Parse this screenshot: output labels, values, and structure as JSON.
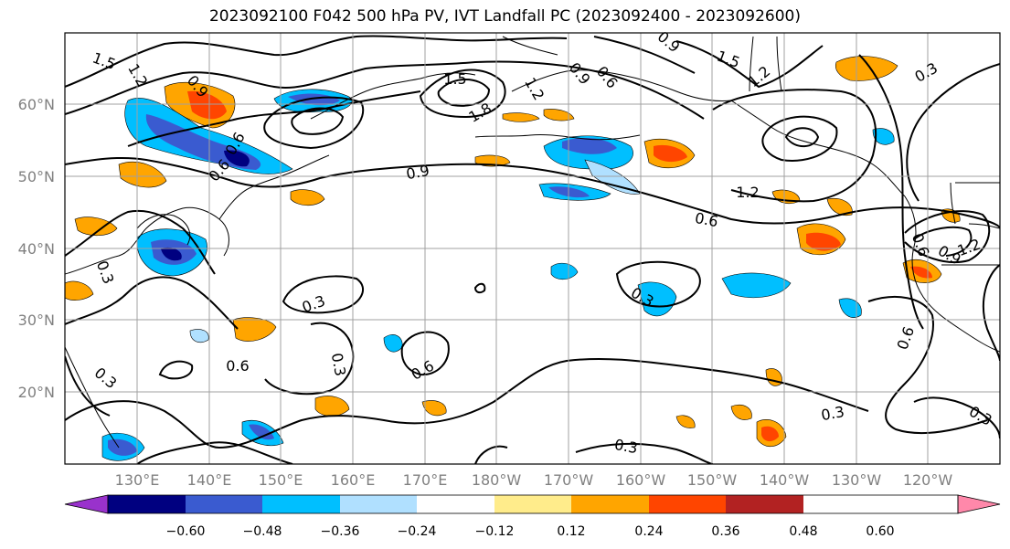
{
  "title": "2023092100 F042 500 hPa PV, IVT Landfall PC (2023092400 - 2023092600)",
  "lat_labels": [
    "60°N",
    "50°N",
    "40°N",
    "30°N",
    "20°N"
  ],
  "lon_labels": [
    "130°E",
    "140°E",
    "150°E",
    "160°E",
    "170°E",
    "180°W",
    "170°W",
    "160°W",
    "150°W",
    "140°W",
    "130°W",
    "120°W"
  ],
  "contour_labels": [
    "1.5",
    "1.2",
    "0.9",
    "0.6",
    "1.5",
    "1.8",
    "1.2",
    "0.9",
    "0.6",
    "0.9",
    "1.5",
    "1.2",
    "0.3",
    "0.9",
    "0.6",
    "1.2",
    "0.6",
    "0.3",
    "0.3",
    "0.6",
    "0.3",
    "0.6",
    "0.3",
    "0.3",
    "0.3",
    "0.6",
    "0.3",
    "0.3",
    "0.9",
    "1.2",
    "0.6"
  ],
  "colorbar": {
    "colors": [
      "#9932cc",
      "#000080",
      "#3a5bd0",
      "#00bfff",
      "#b0e0ff",
      "#ffffff",
      "#ffec8b",
      "#ffa500",
      "#ff4500",
      "#b22222",
      "#ff88aa"
    ],
    "ticks": [
      "−0.60",
      "−0.48",
      "−0.36",
      "−0.24",
      "−0.12",
      "0.12",
      "0.24",
      "0.36",
      "0.48",
      "0.60"
    ]
  }
}
